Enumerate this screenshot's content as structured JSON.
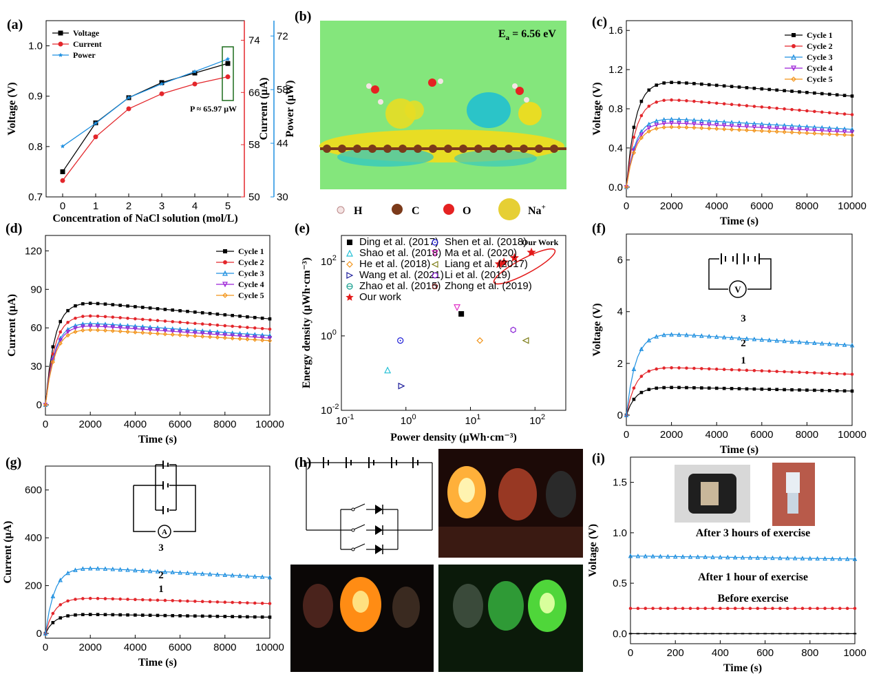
{
  "panels": {
    "a": {
      "letter": "(a)"
    },
    "b": {
      "letter": "(b)",
      "energy": "E",
      "energy_sub": "a",
      "energy_value": " = 6.56 eV",
      "atoms": [
        {
          "symbol": "H",
          "color": "#f4e4e4"
        },
        {
          "symbol": "C",
          "color": "#7b3a1a"
        },
        {
          "symbol": "O",
          "color": "#e52222"
        },
        {
          "symbol": "Na",
          "sup": "+",
          "color": "#e6cf34"
        }
      ]
    },
    "c": {
      "letter": "(c)"
    },
    "d": {
      "letter": "(d)"
    },
    "e": {
      "letter": "(e)"
    },
    "f": {
      "letter": "(f)"
    },
    "g": {
      "letter": "(g)"
    },
    "h": {
      "letter": "(h)"
    },
    "i": {
      "letter": "(i)"
    }
  },
  "chart_data": [
    {
      "id": "a",
      "type": "line",
      "xlabel": "Concentration of NaCl solution (mol/L)",
      "x": [
        0,
        1,
        2,
        3,
        4,
        5
      ],
      "axes": [
        {
          "label": "Voltage (V)",
          "color": "#000000",
          "lim": [
            0.7,
            1.05
          ],
          "ticks": [
            0.7,
            0.8,
            0.9,
            1.0
          ],
          "tick_labels": [
            "0.7",
            "0.8",
            "0.9",
            "1.0"
          ]
        },
        {
          "label": "Current (μA)",
          "color": "#e3262b",
          "lim": [
            50,
            77
          ],
          "ticks": [
            50,
            58,
            66,
            74
          ],
          "tick_labels": [
            "50",
            "58",
            "66",
            "74"
          ]
        },
        {
          "label": "Power (μW)",
          "color": "#1d8fe0",
          "lim": [
            30,
            76
          ],
          "ticks": [
            30,
            44,
            58,
            72
          ],
          "tick_labels": [
            "30",
            "44",
            "58",
            "72"
          ]
        }
      ],
      "series": [
        {
          "name": "Voltage",
          "color": "#000000",
          "marker": "square",
          "axis": 0,
          "values": [
            0.75,
            0.847,
            0.897,
            0.927,
            0.946,
            0.965
          ]
        },
        {
          "name": "Current",
          "color": "#e3262b",
          "marker": "circle",
          "axis": 1,
          "values": [
            52.5,
            59.2,
            63.5,
            65.8,
            67.3,
            68.4
          ]
        },
        {
          "name": "Power",
          "color": "#1d8fe0",
          "marker": "star",
          "axis": 2,
          "values": [
            43.2,
            49.2,
            55.9,
            59.5,
            62.7,
            65.97
          ]
        }
      ],
      "annotation": "P ≈ 65.97 μW"
    },
    {
      "id": "c",
      "type": "line",
      "xlabel": "Time (s)",
      "ylabel": "Voltage (V)",
      "xlim": [
        0,
        10000
      ],
      "ylim": [
        -0.1,
        1.7
      ],
      "xticks": [
        0,
        2000,
        4000,
        6000,
        8000,
        10000
      ],
      "yticks": [
        0.0,
        0.4,
        0.8,
        1.2,
        1.6
      ],
      "ytick_labels": [
        "0.0",
        "0.4",
        "0.8",
        "1.2",
        "1.6"
      ],
      "series": [
        {
          "name": "Cycle 1",
          "color": "#000000",
          "marker": "square",
          "peak": 1.08,
          "end": 0.93
        },
        {
          "name": "Cycle 2",
          "color": "#e3262b",
          "marker": "circle",
          "peak": 0.9,
          "end": 0.74
        },
        {
          "name": "Cycle 3",
          "color": "#1d8fe0",
          "marker": "triangle",
          "peak": 0.7,
          "end": 0.59
        },
        {
          "name": "Cycle 4",
          "color": "#9b1fd6",
          "marker": "triangle-down",
          "peak": 0.66,
          "end": 0.56
        },
        {
          "name": "Cycle 5",
          "color": "#f29318",
          "marker": "diamond",
          "peak": 0.62,
          "end": 0.53
        }
      ]
    },
    {
      "id": "d",
      "type": "line",
      "xlabel": "Time (s)",
      "ylabel": "Current (μA)",
      "xlim": [
        0,
        10000
      ],
      "ylim": [
        -8,
        132
      ],
      "xticks": [
        0,
        2000,
        4000,
        6000,
        8000,
        10000
      ],
      "yticks": [
        0,
        30,
        60,
        90,
        120
      ],
      "ytick_labels": [
        "0",
        "30",
        "60",
        "90",
        "120"
      ],
      "series": [
        {
          "name": "Cycle 1",
          "color": "#000000",
          "marker": "square",
          "peak": 80,
          "end": 67
        },
        {
          "name": "Cycle 2",
          "color": "#e3262b",
          "marker": "circle",
          "peak": 70,
          "end": 59
        },
        {
          "name": "Cycle 3",
          "color": "#1d8fe0",
          "marker": "triangle",
          "peak": 64,
          "end": 54
        },
        {
          "name": "Cycle 4",
          "color": "#9b1fd6",
          "marker": "triangle-down",
          "peak": 62,
          "end": 52
        },
        {
          "name": "Cycle 5",
          "color": "#f29318",
          "marker": "diamond",
          "peak": 59,
          "end": 50
        }
      ]
    },
    {
      "id": "e",
      "type": "scatter",
      "xlabel": "Power density (μWh·cm⁻³)",
      "ylabel": "Energy density (μWh·cm⁻³)",
      "xscale": "log",
      "yscale": "log",
      "xlim": [
        0.1,
        300
      ],
      "ylim": [
        0.01,
        500
      ],
      "xticks": [
        0.1,
        1,
        10,
        100
      ],
      "xtick_base": [
        "10",
        "10",
        "10",
        "10"
      ],
      "xtick_exp": [
        "-1",
        "0",
        "1",
        "2"
      ],
      "yticks": [
        0.01,
        1,
        100
      ],
      "ytick_base": [
        "10",
        "10",
        "10"
      ],
      "ytick_exp": [
        "-2",
        "0",
        "2"
      ],
      "annotation": "Our Work",
      "series": [
        {
          "name": "Ding et al. (2017)",
          "color": "#000000",
          "marker": "square",
          "points": [
            [
              7.2,
              3.9
            ]
          ]
        },
        {
          "name": "Shen et al. (2018)",
          "color": "#1b1bd6",
          "marker": "circle-dot",
          "points": [
            [
              0.82,
              0.75
            ]
          ]
        },
        {
          "name": "Shao et al. (2018)",
          "color": "#22c0d6",
          "marker": "triangle",
          "points": [
            [
              0.52,
              0.12
            ]
          ]
        },
        {
          "name": "Ma et al. (2020)",
          "color": "#e030c6",
          "marker": "triangle-down",
          "points": [
            [
              6.2,
              5.8
            ]
          ]
        },
        {
          "name": "He et al. (2018)",
          "color": "#f29318",
          "marker": "diamond",
          "points": [
            [
              14,
              0.75
            ]
          ]
        },
        {
          "name": "Liang et al. (2017)",
          "color": "#7c7c16",
          "marker": "triangle-left",
          "points": [
            [
              72,
              0.75
            ]
          ]
        },
        {
          "name": "Wang et al. (2021)",
          "color": "#1b1b9a",
          "marker": "triangle-right",
          "points": [
            [
              0.85,
              0.045
            ]
          ]
        },
        {
          "name": "Li et al. (2019)",
          "color": "#8a22d6",
          "marker": "hexagon",
          "points": [
            [
              46,
              1.45
            ]
          ]
        },
        {
          "name": "Zhao et al. (2015)",
          "color": "#18a08f",
          "marker": "circle-dash",
          "points": []
        },
        {
          "name": "Zhong et al. (2019)",
          "color": "#7b1a1a",
          "marker": "pentagon",
          "points": []
        },
        {
          "name": "Our work",
          "color": "#e31a1a",
          "marker": "star",
          "points": [
            [
              28,
              85
            ],
            [
              33,
              95
            ],
            [
              48,
              125
            ],
            [
              88,
              175
            ]
          ]
        }
      ]
    },
    {
      "id": "f",
      "type": "line",
      "xlabel": "Time (s)",
      "ylabel": "Voltage (V)",
      "xlim": [
        0,
        10000
      ],
      "ylim": [
        -0.4,
        7
      ],
      "xticks": [
        0,
        2000,
        4000,
        6000,
        8000,
        10000
      ],
      "yticks": [
        0,
        2,
        4,
        6
      ],
      "ytick_labels": [
        "0",
        "2",
        "4",
        "6"
      ],
      "series": [
        {
          "name": "1",
          "color": "#000000",
          "marker": "square",
          "peak": 1.08,
          "end": 0.93
        },
        {
          "name": "2",
          "color": "#e3262b",
          "marker": "circle",
          "peak": 1.85,
          "end": 1.58
        },
        {
          "name": "3",
          "color": "#1d8fe0",
          "marker": "triangle",
          "peak": 3.15,
          "end": 2.7
        }
      ]
    },
    {
      "id": "g",
      "type": "line",
      "xlabel": "Time (s)",
      "ylabel": "Current (μA)",
      "xlim": [
        0,
        10000
      ],
      "ylim": [
        -20,
        700
      ],
      "xticks": [
        0,
        2000,
        4000,
        6000,
        8000,
        10000
      ],
      "yticks": [
        0,
        200,
        400,
        600
      ],
      "ytick_labels": [
        "0",
        "200",
        "400",
        "600"
      ],
      "series": [
        {
          "name": "1",
          "color": "#000000",
          "marker": "square",
          "peak": 80,
          "end": 68
        },
        {
          "name": "2",
          "color": "#e3262b",
          "marker": "circle",
          "peak": 148,
          "end": 125
        },
        {
          "name": "3",
          "color": "#1d8fe0",
          "marker": "triangle",
          "peak": 275,
          "end": 235
        }
      ]
    },
    {
      "id": "i",
      "type": "line",
      "xlabel": "Time (s)",
      "ylabel": "Voltage (V)",
      "xlim": [
        0,
        1000
      ],
      "ylim": [
        -0.1,
        1.75
      ],
      "xticks": [
        0,
        200,
        400,
        600,
        800,
        1000
      ],
      "yticks": [
        0.0,
        0.5,
        1.0,
        1.5
      ],
      "ytick_labels": [
        "0.0",
        "0.5",
        "1.0",
        "1.5"
      ],
      "series": [
        {
          "name": "Before exercise",
          "color": "#000000",
          "marker": "dash",
          "level": 0.0
        },
        {
          "name": "After  1 hour of exercise",
          "color": "#e3262b",
          "marker": "circle",
          "level": 0.25
        },
        {
          "name": "After  3 hours of exercise",
          "color": "#1d8fe0",
          "marker": "triangle",
          "level": 0.77,
          "slope": -0.03
        }
      ]
    }
  ]
}
